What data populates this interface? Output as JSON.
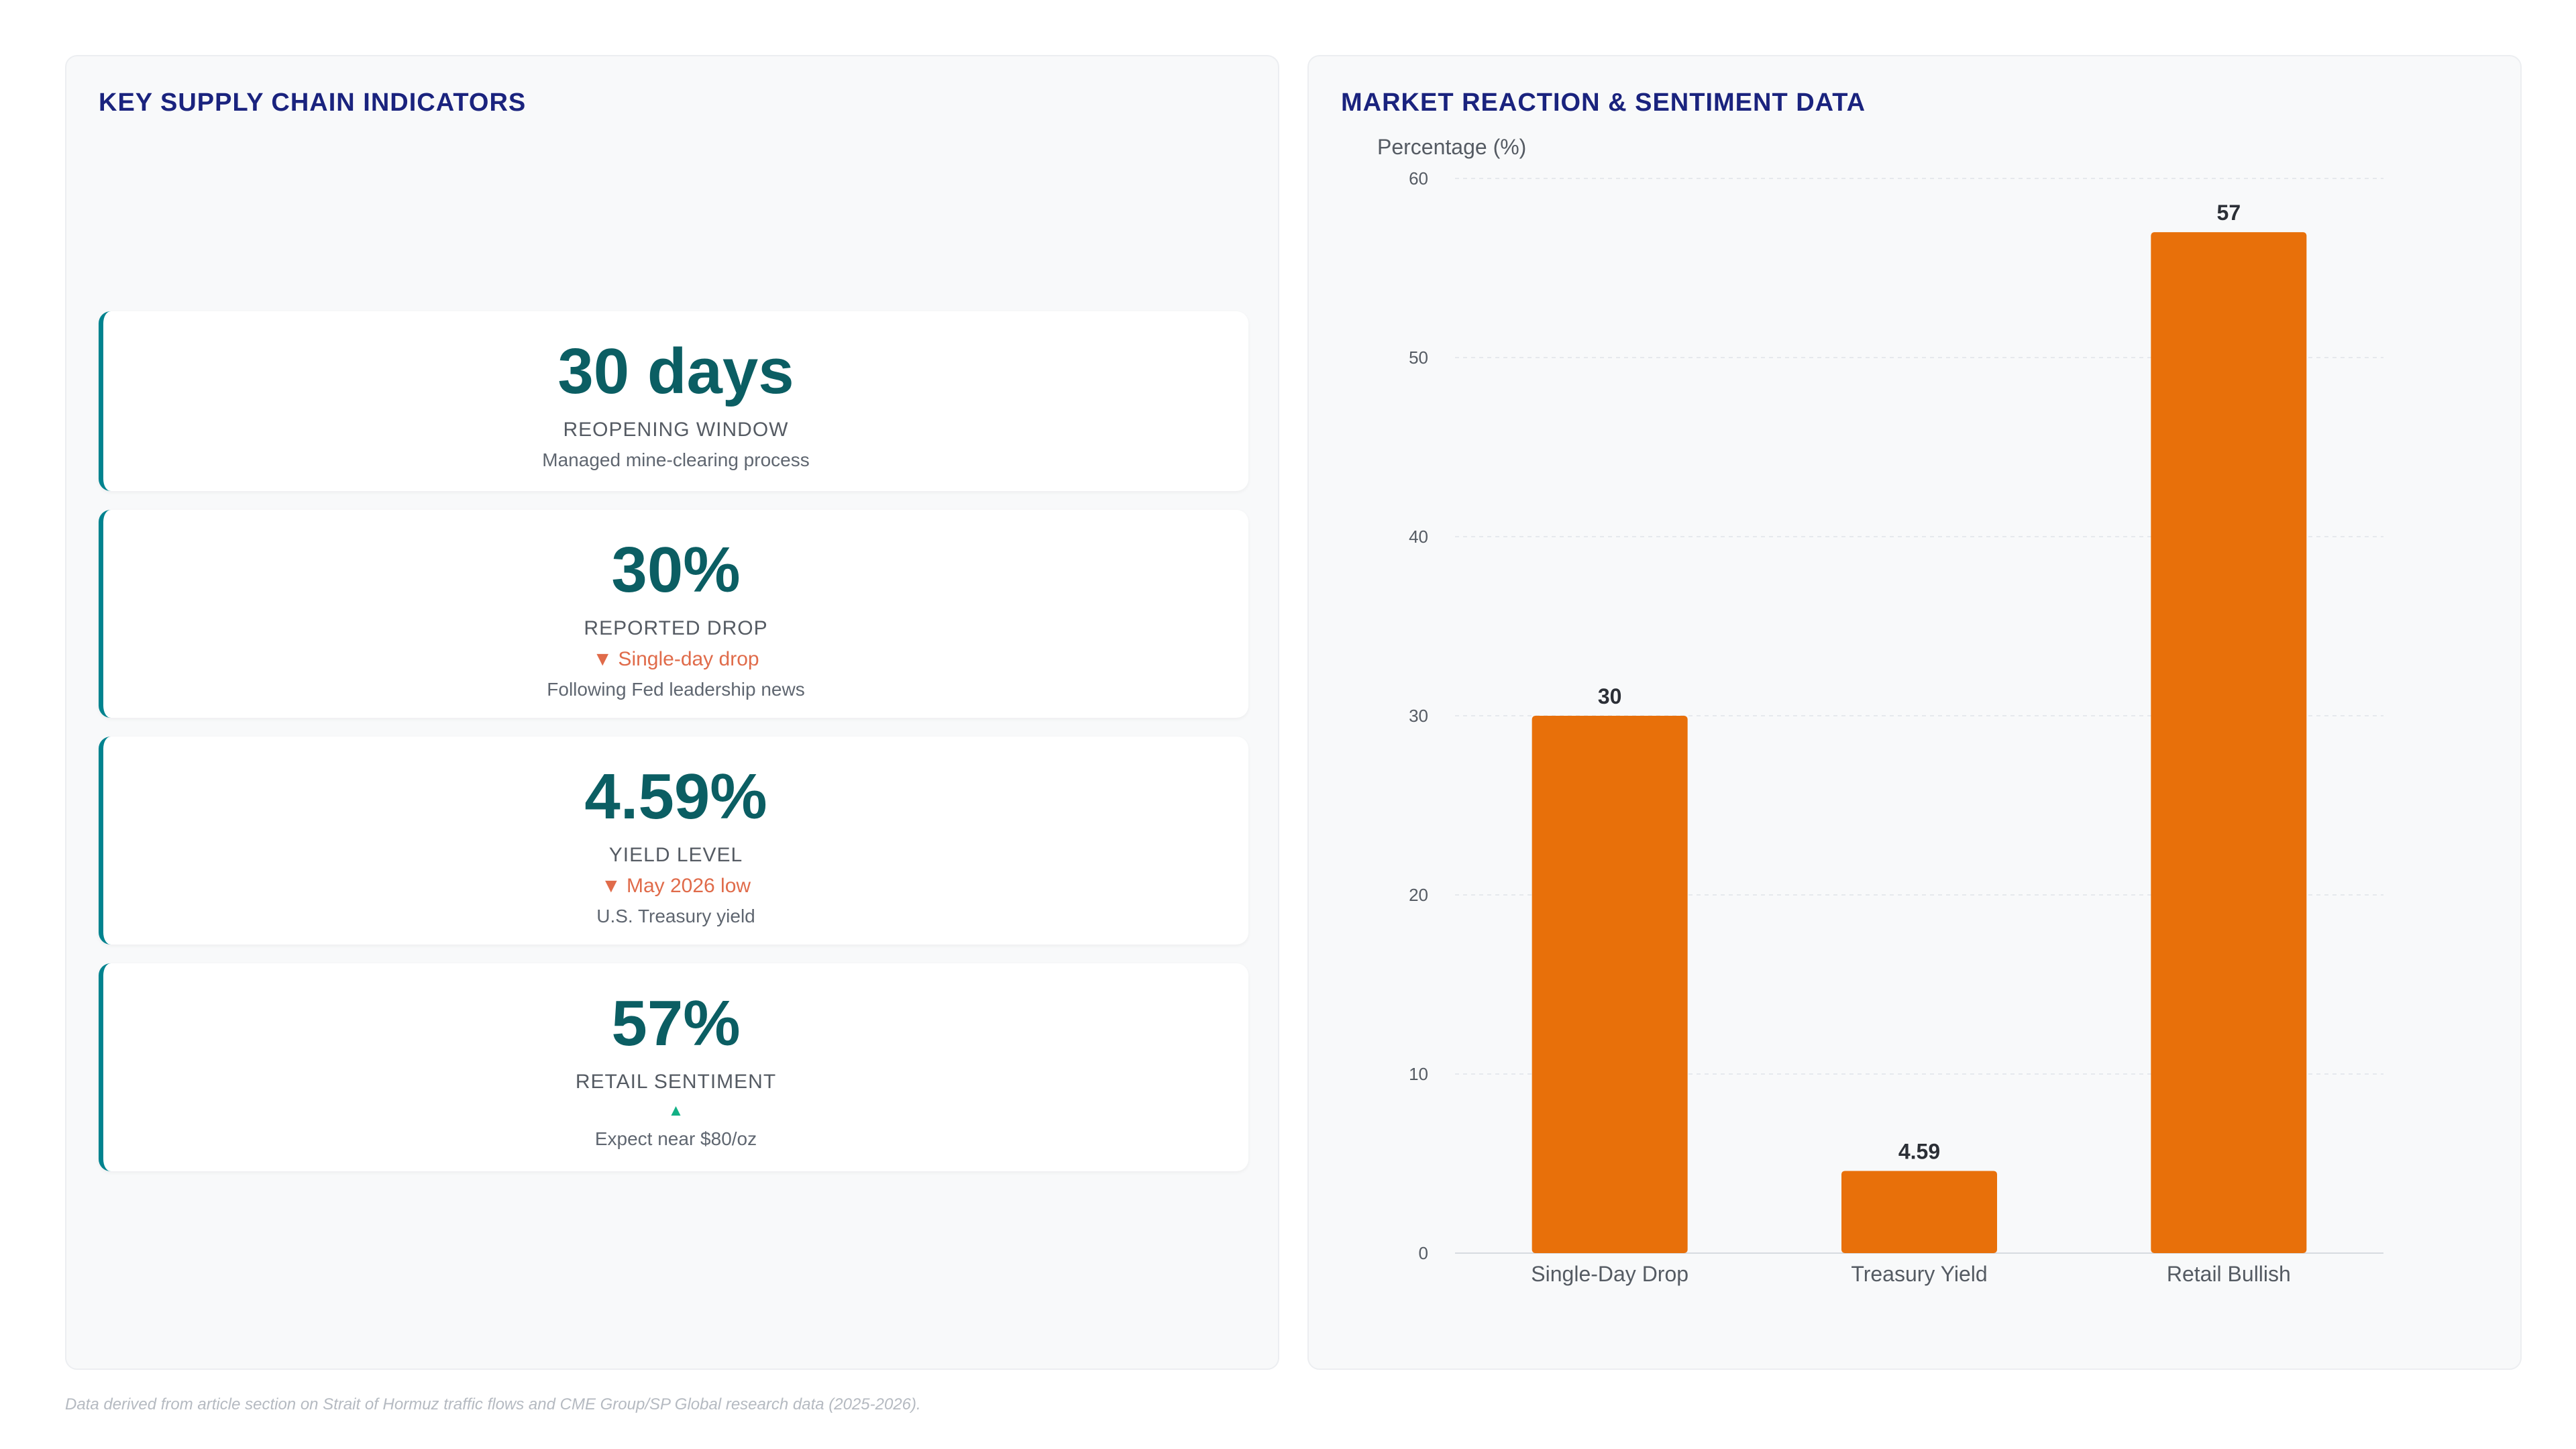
{
  "left_panel": {
    "title": "KEY SUPPLY CHAIN INDICATORS",
    "kpis": [
      {
        "value": "30 days",
        "label": "REOPENING WINDOW",
        "change": "",
        "change_dir": "none",
        "note": "Managed mine-clearing process"
      },
      {
        "value": "30%",
        "label": "REPORTED DROP",
        "change": "▼ Single-day drop",
        "change_dir": "down",
        "note": "Following Fed leadership news"
      },
      {
        "value": "4.59%",
        "label": "YIELD LEVEL",
        "change": "▼ May 2026 low",
        "change_dir": "down",
        "note": "U.S. Treasury yield"
      },
      {
        "value": "57%",
        "label": "RETAIL SENTIMENT",
        "change": "▲",
        "change_dir": "up",
        "note": "Expect near $80/oz"
      }
    ]
  },
  "right_panel": {
    "title": "MARKET REACTION & SENTIMENT DATA"
  },
  "chart_data": {
    "type": "bar",
    "title": "",
    "ylabel": "Percentage (%)",
    "xlabel": "",
    "categories": [
      "Single-Day Drop",
      "Treasury Yield",
      "Retail Bullish"
    ],
    "values": [
      30,
      4.59,
      57
    ],
    "value_labels": [
      "30",
      "4.59",
      "57"
    ],
    "ylim": [
      0,
      60
    ],
    "yticks": [
      0,
      10,
      20,
      30,
      40,
      50,
      60
    ],
    "grid": true,
    "bar_color": "#e8700a"
  },
  "footnote": "Data derived from article section on Strait of Hormuz traffic flows and CME Group/SP Global research data (2025-2026)."
}
